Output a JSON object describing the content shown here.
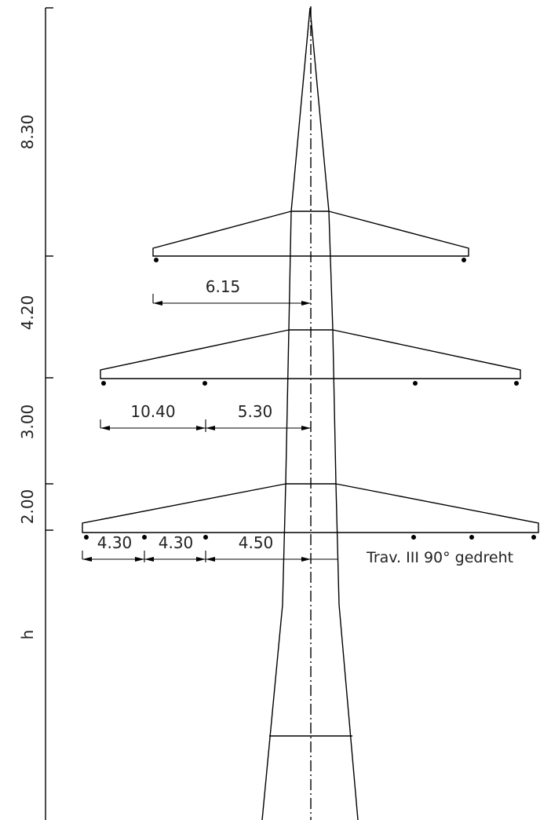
{
  "vertical_dimensions": [
    "8.30",
    "4.20",
    "3.00",
    "2.00",
    "h"
  ],
  "horizontal_dimensions": {
    "top": [
      "6.15"
    ],
    "middle": [
      "10.40",
      "5.30"
    ],
    "bottom": [
      "4.30",
      "4.30",
      "4.50"
    ]
  },
  "note": "Trav. III 90° gedreht"
}
